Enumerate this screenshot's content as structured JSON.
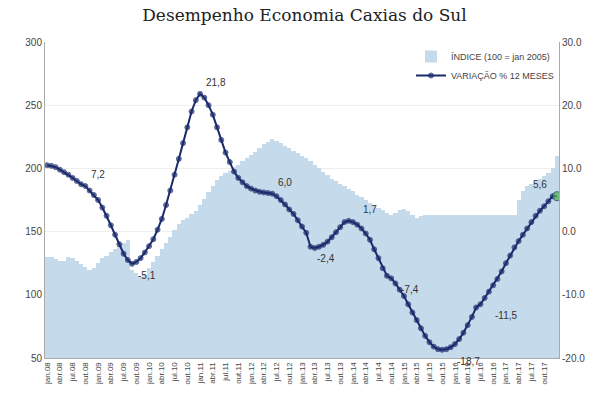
{
  "chart_data": {
    "type": "bar",
    "title": "Desempenho Economia Caxias do Sul",
    "categories": [
      "jan.08",
      null,
      null,
      "abr.08",
      null,
      null,
      "jul.08",
      null,
      null,
      "out.08",
      null,
      null,
      "jan.09",
      null,
      null,
      "abr.09",
      null,
      null,
      "jul.09",
      null,
      null,
      "out.09",
      null,
      null,
      "jan.10",
      null,
      null,
      "abr.10",
      null,
      null,
      "jul.10",
      null,
      null,
      "out.10",
      null,
      null,
      "jan.11",
      null,
      null,
      "abr.11",
      null,
      null,
      "jul.11",
      null,
      null,
      "out.11",
      null,
      null,
      "jan.12",
      null,
      null,
      "abr.12",
      null,
      null,
      "jul.12",
      null,
      null,
      "out.12",
      null,
      null,
      "jan.13",
      null,
      null,
      "abr.13",
      null,
      null,
      "jul.13",
      null,
      null,
      "out.13",
      null,
      null,
      "jan.14",
      null,
      null,
      "abr.14",
      null,
      null,
      "jul.14",
      null,
      null,
      "out.14",
      null,
      null,
      "jan.15",
      null,
      null,
      "abr.15",
      null,
      null,
      "jul.15",
      null,
      null,
      "out.15",
      null,
      null,
      "jan.16",
      null,
      null,
      "abr.16",
      null,
      null,
      "jul.16",
      null,
      null,
      "out.16",
      null,
      null,
      "jan.17",
      null,
      null,
      "abr.17",
      null,
      null,
      "jul.17",
      null,
      null,
      "out.17",
      null,
      null,
      null
    ],
    "series": [
      {
        "name": "ÍNDICE (100 = jan 2005)",
        "type": "bar",
        "color": "#c5daea",
        "values": [
          130,
          130,
          128,
          127,
          127,
          130,
          129,
          127,
          124,
          122,
          120,
          121,
          125,
          129,
          131,
          134,
          136,
          139,
          141,
          143,
          120,
          117,
          114,
          116,
          121,
          126,
          131,
          136,
          141,
          146,
          151,
          156,
          159,
          161,
          164,
          166,
          171,
          176,
          181,
          186,
          191,
          194,
          196,
          198,
          201,
          203,
          206,
          208,
          211,
          213,
          216,
          219,
          221,
          223,
          222,
          220,
          218,
          216,
          214,
          212,
          210,
          208,
          206,
          203,
          200,
          197,
          195,
          192,
          190,
          188,
          186,
          184,
          182,
          179,
          177,
          175,
          173,
          171,
          169,
          167,
          165,
          163,
          165,
          167,
          168,
          166,
          163,
          161,
          162,
          163,
          163,
          163,
          163,
          163,
          163,
          163,
          163,
          163,
          163,
          163,
          163,
          163,
          163,
          163,
          163,
          163,
          163,
          163,
          163,
          163,
          163,
          175,
          182,
          186,
          188,
          190,
          192,
          194,
          196,
          200,
          210
        ]
      },
      {
        "name": "VARIAÇÃO % 12 MESES",
        "type": "line",
        "axis": "y2",
        "color": "#1a2a6c",
        "marker": "circle",
        "colors": [
          "#1a2a6c",
          "#1a2a6c",
          "#1a2a6c",
          "#1a2a6c",
          "#1a2a6c",
          "#1a2a6c",
          "#1a2a6c",
          "#1a2a6c",
          "#1a2a6c",
          "#1a2a6c",
          "#1a2a6c",
          "#1a2a6c",
          "#1a2a6c",
          "#1a2a6c",
          "#1a2a6c",
          "#1a2a6c",
          "#1a2a6c",
          "#1a2a6c",
          "#1a2a6c",
          "#1a2a6c",
          "#1a2a6c",
          "#1a2a6c",
          "#1a2a6c",
          "#1a2a6c",
          "#1a2a6c",
          "#1a2a6c",
          "#1a2a6c",
          "#1a2a6c",
          "#1a2a6c",
          "#1a2a6c",
          "#1a2a6c",
          "#1a2a6c",
          "#1a2a6c",
          "#1a2a6c",
          "#1a2a6c",
          "#1a2a6c",
          "#1a2a6c",
          "#1a2a6c",
          "#1a2a6c",
          "#1a2a6c",
          "#1a2a6c",
          "#1a2a6c",
          "#1a2a6c",
          "#1a2a6c",
          "#1a2a6c",
          "#1a2a6c",
          "#1a2a6c",
          "#1a2a6c",
          "#1a2a6c",
          "#1a2a6c",
          "#1a2a6c",
          "#1a2a6c",
          "#1a2a6c",
          "#1a2a6c",
          "#1a2a6c",
          "#1a2a6c",
          "#1a2a6c",
          "#1a2a6c",
          "#1a2a6c",
          "#1a2a6c",
          "#1a2a6c",
          "#1a2a6c",
          "#1a2a6c",
          "#1a2a6c",
          "#1a2a6c",
          "#1a2a6c",
          "#1a2a6c",
          "#1a2a6c",
          "#1a2a6c",
          "#1a2a6c",
          "#1a2a6c",
          "#1a2a6c",
          "#1a2a6c",
          "#1a2a6c",
          "#1a2a6c",
          "#1a2a6c",
          "#1a2a6c",
          "#1a2a6c",
          "#1a2a6c",
          "#1a2a6c",
          "#1a2a6c",
          "#1a2a6c",
          "#1a2a6c",
          "#1a2a6c",
          "#1a2a6c",
          "#1a2a6c",
          "#1a2a6c",
          "#1a2a6c",
          "#1a2a6c",
          "#1a2a6c",
          "#1a2a6c",
          "#1a2a6c",
          "#1a2a6c",
          "#1a2a6c",
          "#1a2a6c",
          "#1a2a6c",
          "#1a2a6c",
          "#1a2a6c",
          "#1a2a6c",
          "#1a2a6c",
          "#1a2a6c",
          "#1a2a6c",
          "#1a2a6c",
          "#1a2a6c",
          "#1a2a6c",
          "#1a2a6c",
          "#1a2a6c",
          "#1a2a6c",
          "#1a2a6c",
          "#1a2a6c",
          "#1a2a6c",
          "#1a2a6c",
          "#1a2a6c",
          "#1a2a6c",
          "#1a2a6c",
          "#1a2a6c",
          "#1a2a6c",
          "#1a2a6c",
          "#1a2a6c",
          "#1a2a6c",
          "#4caf50"
        ],
        "values": [
          10.5,
          10.4,
          10.2,
          9.8,
          9.4,
          9.0,
          8.5,
          8.0,
          7.5,
          7.2,
          6.5,
          5.8,
          5.0,
          3.8,
          2.5,
          1.0,
          -0.5,
          -2.0,
          -3.5,
          -4.5,
          -5.1,
          -4.8,
          -4.2,
          -3.3,
          -2.3,
          -1.2,
          0.3,
          2.0,
          4.2,
          6.5,
          9.0,
          11.5,
          14.0,
          16.5,
          19.0,
          20.8,
          21.8,
          21.2,
          20.0,
          18.5,
          16.5,
          14.5,
          12.5,
          11.0,
          9.5,
          8.5,
          7.8,
          7.2,
          6.8,
          6.5,
          6.3,
          6.2,
          6.1,
          6.0,
          5.6,
          5.0,
          4.3,
          3.5,
          2.8,
          1.8,
          0.8,
          -0.2,
          -2.4,
          -2.6,
          -2.4,
          -2.1,
          -1.6,
          -0.9,
          -0.1,
          0.7,
          1.5,
          1.7,
          1.5,
          1.1,
          0.5,
          -0.3,
          -1.3,
          -2.8,
          -4.2,
          -5.8,
          -7.0,
          -7.4,
          -8.2,
          -9.2,
          -10.2,
          -11.5,
          -12.8,
          -14.0,
          -15.3,
          -16.5,
          -17.5,
          -18.2,
          -18.6,
          -18.7,
          -18.6,
          -18.3,
          -17.8,
          -17.0,
          -16.0,
          -14.8,
          -13.5,
          -12.0,
          -11.5,
          -10.5,
          -9.5,
          -8.5,
          -7.5,
          -6.3,
          -5.0,
          -3.8,
          -2.5,
          -1.5,
          -0.5,
          0.5,
          1.5,
          2.5,
          3.3,
          4.0,
          4.8,
          5.6,
          5.6
        ]
      }
    ],
    "ylim": [
      50,
      300
    ],
    "yticks": [
      50,
      100,
      150,
      200,
      250,
      300
    ],
    "y2lim": [
      -20,
      30
    ],
    "y2ticks": [
      {
        "value": -20,
        "label": "-20.0"
      },
      {
        "value": -10,
        "label": "-10.0"
      },
      {
        "value": 0,
        "label": "0.0"
      },
      {
        "value": 10,
        "label": "10.0"
      },
      {
        "value": 20,
        "label": "20.0"
      },
      {
        "value": 30,
        "label": "30.0"
      }
    ],
    "grid": true,
    "legend": "upper right",
    "annotations": [
      {
        "x": 9,
        "y": 7.2,
        "text": "7,2",
        "axis": "y2"
      },
      {
        "x": 20,
        "y": -5.1,
        "text": "-5,1",
        "axis": "y2"
      },
      {
        "x": 36,
        "y": 21.8,
        "text": "21,8",
        "axis": "y2"
      },
      {
        "x": 53,
        "y": 6.0,
        "text": "6,0",
        "axis": "y2"
      },
      {
        "x": 62,
        "y": -2.4,
        "text": "-2,4",
        "axis": "y2"
      },
      {
        "x": 73,
        "y": 1.7,
        "text": "1,7",
        "axis": "y2"
      },
      {
        "x": 82,
        "y": -7.4,
        "text": "-7,4",
        "axis": "y2"
      },
      {
        "x": 95,
        "y": -18.7,
        "text": "-18,7",
        "axis": "y2"
      },
      {
        "x": 104,
        "y": -11.5,
        "text": "-11,5",
        "axis": "y2"
      },
      {
        "x": 119,
        "y": 5.6,
        "text": "5,6",
        "axis": "y2"
      }
    ]
  }
}
